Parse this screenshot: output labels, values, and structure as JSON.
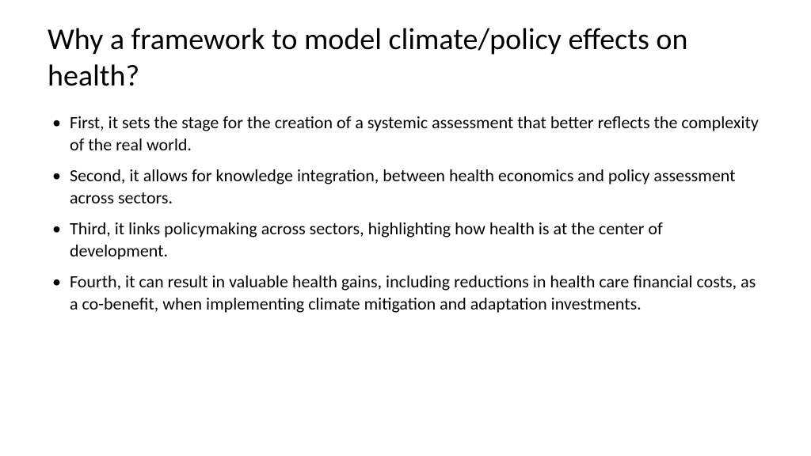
{
  "slide": {
    "title": "Why a framework to model climate/policy effects on health?",
    "bullets": [
      "First, it sets the stage for the creation of a systemic assessment that better reflects the complexity of the real world.",
      "Second, it allows for knowledge integration, between health economics and policy assessment across sectors.",
      "Third, it links policymaking across sectors, highlighting how health is at the center of development.",
      "Fourth, it can result in valuable health gains, including reductions in health care financial costs, as a co-benefit, when implementing climate mitigation and adaptation investments."
    ],
    "background_color": "#ffffff",
    "text_color": "#000000",
    "title_fontsize": 38,
    "body_fontsize": 22
  }
}
